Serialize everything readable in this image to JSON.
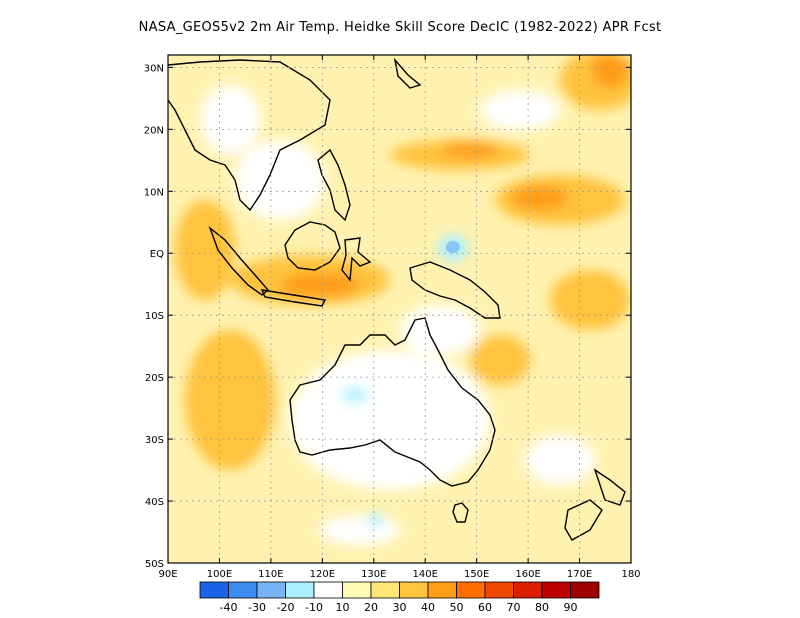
{
  "title": "NASA_GEOS5v2  2m Air Temp. Heidke Skill Score DecIC (1982-2022) APR Fcst",
  "map": {
    "lon_ticks": [
      "90E",
      "100E",
      "110E",
      "120E",
      "130E",
      "140E",
      "150E",
      "160E",
      "170E",
      "180"
    ],
    "lat_ticks": [
      "30N",
      "20N",
      "10N",
      "EQ",
      "10S",
      "20S",
      "30S",
      "40S",
      "50S"
    ],
    "lon_range": [
      90,
      180
    ],
    "lat_range": [
      -50,
      32
    ],
    "grid": "dotted"
  },
  "colorbar": {
    "labels": [
      "-40",
      "-30",
      "-20",
      "-10",
      "10",
      "20",
      "30",
      "40",
      "50",
      "60",
      "70",
      "80",
      "90"
    ],
    "colors": [
      "#1c64e6",
      "#3c8cf0",
      "#78b4f5",
      "#aaf0ff",
      "#ffffff",
      "#fffab4",
      "#ffe678",
      "#ffc33c",
      "#ff9b14",
      "#ff6e00",
      "#f04600",
      "#dc1e00",
      "#be0000",
      "#a00000"
    ]
  }
}
